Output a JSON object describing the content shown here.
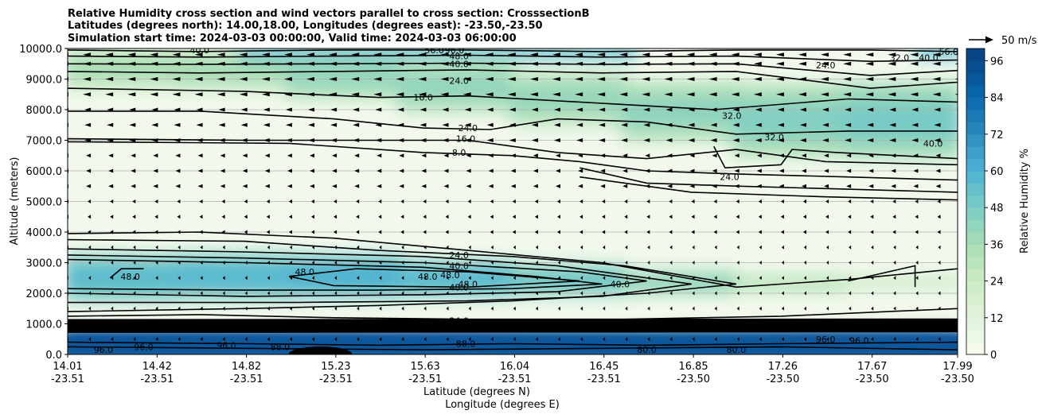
{
  "chart_data": {
    "type": "heatmap",
    "title_lines": [
      "Relative Humidity cross section and wind vectors parallel to cross section: CrosssectionB",
      "Latitudes (degrees north): 14.00,18.00, Longitudes (degrees east): -23.50,-23.50",
      "Simulation start time: 2024-03-03 00:00:00, Valid time: 2024-03-03 06:00:00"
    ],
    "ylabel": "Altitude (meters)",
    "xlabel_line1": "Latitude (degrees N)",
    "xlabel_line2": "Longitude (degrees E)",
    "ylim": [
      0,
      10000
    ],
    "grid": "horizontal",
    "y_ticks": [
      "0.0",
      "1000.0",
      "2000.0",
      "3000.0",
      "4000.0",
      "5000.0",
      "6000.0",
      "7000.0",
      "8000.0",
      "9000.0",
      "10000.0"
    ],
    "x_ticks": [
      {
        "lat": "14.01",
        "lon": "-23.51"
      },
      {
        "lat": "14.42",
        "lon": "-23.51"
      },
      {
        "lat": "14.82",
        "lon": "-23.51"
      },
      {
        "lat": "15.23",
        "lon": "-23.51"
      },
      {
        "lat": "15.63",
        "lon": "-23.51"
      },
      {
        "lat": "16.04",
        "lon": "-23.51"
      },
      {
        "lat": "16.45",
        "lon": "-23.51"
      },
      {
        "lat": "16.85",
        "lon": "-23.50"
      },
      {
        "lat": "17.26",
        "lon": "-23.50"
      },
      {
        "lat": "17.67",
        "lon": "-23.50"
      },
      {
        "lat": "17.99",
        "lon": "-23.50"
      }
    ],
    "colorbar": {
      "label": "Relative Humidity %",
      "range": [
        0,
        100
      ],
      "ticks": [
        "0",
        "12",
        "24",
        "36",
        "48",
        "60",
        "72",
        "84",
        "96"
      ]
    },
    "quiver_key": "50 m/s",
    "contour_labels": [
      {
        "text": "40.0",
        "lat": 14.6,
        "alt": 9950
      },
      {
        "text": "56.0",
        "lat": 15.65,
        "alt": 9950
      },
      {
        "text": "96.0",
        "lat": 15.74,
        "alt": 9950
      },
      {
        "text": "48.0",
        "lat": 15.76,
        "alt": 9750
      },
      {
        "text": "40.0",
        "lat": 15.76,
        "alt": 9500
      },
      {
        "text": "24.0",
        "lat": 15.76,
        "alt": 8950
      },
      {
        "text": "16.0",
        "lat": 15.6,
        "alt": 8400
      },
      {
        "text": "24.0",
        "lat": 17.4,
        "alt": 9450
      },
      {
        "text": "32.0",
        "lat": 17.73,
        "alt": 9700
      },
      {
        "text": "40.0",
        "lat": 17.86,
        "alt": 9700
      },
      {
        "text": "56.0",
        "lat": 17.95,
        "alt": 9900
      },
      {
        "text": "32.0",
        "lat": 16.98,
        "alt": 7800
      },
      {
        "text": "32.0",
        "lat": 17.17,
        "alt": 7100
      },
      {
        "text": "40.0",
        "lat": 17.88,
        "alt": 6900
      },
      {
        "text": "24.0",
        "lat": 16.97,
        "alt": 5800
      },
      {
        "text": "24.0",
        "lat": 15.8,
        "alt": 7400
      },
      {
        "text": "16.0",
        "lat": 15.79,
        "alt": 7050
      },
      {
        "text": "8.0",
        "lat": 15.76,
        "alt": 6600
      },
      {
        "text": "24.0",
        "lat": 15.76,
        "alt": 3250
      },
      {
        "text": "40.0",
        "lat": 15.76,
        "alt": 2900
      },
      {
        "text": "48.0",
        "lat": 15.62,
        "alt": 2550
      },
      {
        "text": "48.0",
        "lat": 15.72,
        "alt": 2600
      },
      {
        "text": "48.0",
        "lat": 15.8,
        "alt": 2300
      },
      {
        "text": "48.0",
        "lat": 15.76,
        "alt": 2200
      },
      {
        "text": "40.0",
        "lat": 16.48,
        "alt": 2300
      },
      {
        "text": "48.0",
        "lat": 14.29,
        "alt": 2550
      },
      {
        "text": "48.0",
        "lat": 15.07,
        "alt": 2700
      },
      {
        "text": "24.0",
        "lat": 15.76,
        "alt": 1100
      },
      {
        "text": "96.0",
        "lat": 14.18,
        "alt": 1000
      },
      {
        "text": "96.0",
        "lat": 15.74,
        "alt": 1000
      },
      {
        "text": "88.0",
        "lat": 15.79,
        "alt": 350
      },
      {
        "text": "96.0",
        "lat": 14.17,
        "alt": 150
      },
      {
        "text": "96.0",
        "lat": 14.35,
        "alt": 250
      },
      {
        "text": "96.0",
        "lat": 14.72,
        "alt": 300
      },
      {
        "text": "88.0",
        "lat": 14.96,
        "alt": 250
      },
      {
        "text": "80.0",
        "lat": 16.6,
        "alt": 150
      },
      {
        "text": "80.0",
        "lat": 17.0,
        "alt": 150
      },
      {
        "text": "96.0",
        "lat": 17.4,
        "alt": 500
      },
      {
        "text": "96.0",
        "lat": 17.55,
        "alt": 450
      }
    ],
    "rh_layers": [
      {
        "name": "upper",
        "lat": [
          14.01,
          14.5,
          15.0,
          15.5,
          16.0,
          16.5,
          17.0,
          17.5,
          17.99
        ],
        "alt_center": [
          9300,
          9400,
          9200,
          9000,
          8500,
          8200,
          7700,
          7600,
          7700
        ],
        "thickness": [
          1400,
          1300,
          1400,
          1600,
          1700,
          1700,
          2200,
          2500,
          2400
        ],
        "rh": [
          28,
          24,
          30,
          34,
          30,
          32,
          34,
          38,
          40
        ]
      },
      {
        "name": "mid",
        "lat": [
          14.01,
          14.5,
          15.0,
          15.5,
          16.0,
          16.5,
          17.0,
          17.5,
          17.99
        ],
        "alt_center": [
          2500,
          2500,
          2600,
          2500,
          2450,
          2400,
          2300,
          2350,
          2400
        ],
        "thickness": [
          1500,
          1500,
          1500,
          1300,
          1100,
          900,
          700,
          500,
          400
        ],
        "rh": [
          50,
          44,
          52,
          50,
          46,
          40,
          28,
          18,
          14
        ]
      },
      {
        "name": "boundary",
        "lat": [
          14.01,
          15.0,
          16.0,
          17.0,
          17.99
        ],
        "alt_center": [
          350,
          350,
          350,
          350,
          400
        ],
        "thickness": [
          700,
          700,
          650,
          650,
          700
        ],
        "rh": [
          92,
          90,
          88,
          84,
          86
        ]
      }
    ]
  }
}
